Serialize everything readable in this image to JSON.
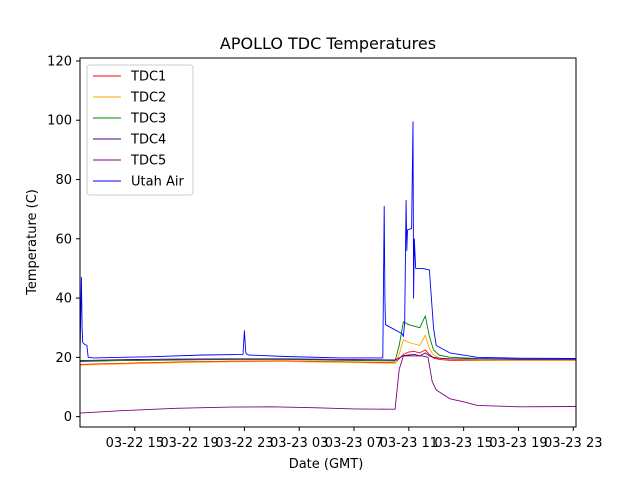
{
  "chart_data": {
    "type": "line",
    "title": "APOLLO TDC Temperatures",
    "xlabel": "Date (GMT)",
    "ylabel": "Temperature (C)",
    "xlim": [
      11.0,
      47.2
    ],
    "ylim": [
      -3.5,
      121
    ],
    "x_unit": "hours since 03-22 00 GMT",
    "xticks": [
      {
        "x": 15,
        "label": "03-22 15"
      },
      {
        "x": 19,
        "label": "03-22 19"
      },
      {
        "x": 23,
        "label": "03-22 23"
      },
      {
        "x": 27,
        "label": "03-23 03"
      },
      {
        "x": 31,
        "label": "03-23 07"
      },
      {
        "x": 35,
        "label": "03-23 11"
      },
      {
        "x": 39,
        "label": "03-23 15"
      },
      {
        "x": 43,
        "label": "03-23 19"
      },
      {
        "x": 47,
        "label": "03-23 23"
      }
    ],
    "yticks": [
      0,
      20,
      40,
      60,
      80,
      100,
      120
    ],
    "legend_position": "top-left",
    "series": [
      {
        "name": "TDC1",
        "color": "#ff0000",
        "x": [
          11.0,
          14,
          18,
          22,
          26,
          30,
          34.0,
          34.3,
          34.6,
          35.0,
          35.4,
          35.8,
          36.2,
          36.5,
          36.8,
          37.2,
          38,
          40,
          43,
          47.2
        ],
        "y": [
          17.6,
          18.0,
          18.4,
          18.7,
          18.8,
          18.5,
          18.2,
          19.5,
          21.0,
          21.8,
          22.0,
          21.5,
          22.5,
          21.0,
          19.8,
          19.3,
          19.0,
          18.9,
          18.9,
          18.9
        ]
      },
      {
        "name": "TDC2",
        "color": "#ffa500",
        "x": [
          11.0,
          14,
          18,
          22,
          26,
          30,
          34.0,
          34.3,
          34.6,
          35.0,
          35.4,
          35.8,
          36.2,
          36.5,
          36.8,
          37.2,
          38,
          40,
          43,
          47.2
        ],
        "y": [
          17.4,
          17.8,
          18.2,
          18.5,
          18.6,
          18.3,
          18.0,
          21.0,
          26.0,
          25.0,
          24.5,
          24.0,
          27.5,
          23.0,
          20.8,
          19.8,
          19.3,
          19.0,
          18.9,
          18.9
        ]
      },
      {
        "name": "TDC3",
        "color": "#008000",
        "x": [
          11.0,
          14,
          18,
          22,
          26,
          30,
          34.0,
          34.3,
          34.6,
          35.0,
          35.4,
          35.8,
          36.2,
          36.5,
          36.8,
          37.2,
          38,
          40,
          43,
          47.2
        ],
        "y": [
          18.6,
          18.9,
          19.1,
          19.3,
          19.3,
          19.0,
          18.8,
          24.0,
          32.0,
          31.0,
          30.5,
          30.0,
          34.0,
          27.0,
          22.5,
          20.8,
          20.0,
          19.6,
          19.4,
          19.4
        ]
      },
      {
        "name": "TDC4",
        "color": "#4b0082",
        "x": [
          11.0,
          14,
          18,
          22,
          26,
          30,
          34.0,
          34.3,
          34.6,
          35.0,
          35.4,
          35.8,
          36.2,
          36.5,
          36.8,
          37.2,
          38,
          40,
          43,
          47.2
        ],
        "y": [
          18.9,
          19.2,
          19.4,
          19.5,
          19.5,
          19.3,
          19.1,
          19.8,
          20.6,
          20.8,
          21.0,
          20.5,
          21.5,
          20.5,
          20.0,
          19.7,
          19.5,
          19.4,
          19.3,
          19.3
        ]
      },
      {
        "name": "TDC5",
        "color": "#800080",
        "x": [
          11.0,
          14,
          18,
          22,
          25,
          28,
          31,
          33.5,
          34.0,
          34.3,
          34.6,
          36.0,
          36.4,
          36.7,
          37.0,
          37.5,
          38.0,
          39.0,
          40.0,
          43,
          47.2
        ],
        "y": [
          1.2,
          2.0,
          2.8,
          3.2,
          3.3,
          3.0,
          2.6,
          2.5,
          2.5,
          16.0,
          20.5,
          20.5,
          20.0,
          12.0,
          9.0,
          7.5,
          6.0,
          5.0,
          3.8,
          3.3,
          3.4
        ]
      },
      {
        "name": "Utah Air",
        "color": "#0000ff",
        "x": [
          11.0,
          11.1,
          11.15,
          11.2,
          11.3,
          11.5,
          11.6,
          12.0,
          16,
          20,
          22.9,
          23.0,
          23.1,
          23.2,
          23.3,
          26,
          30,
          33.1,
          33.2,
          33.25,
          33.3,
          33.5,
          34.5,
          34.6,
          34.7,
          34.8,
          34.85,
          34.9,
          35.2,
          35.3,
          35.35,
          35.4,
          35.5,
          36.0,
          36.5,
          36.8,
          37.0,
          38,
          40,
          43,
          47.2
        ],
        "y": [
          20.0,
          47.0,
          30.0,
          25.0,
          24.5,
          24.0,
          20.0,
          19.8,
          20.2,
          20.8,
          21.0,
          29.0,
          21.5,
          21.0,
          20.8,
          20.3,
          19.8,
          19.8,
          71.0,
          40.0,
          31.0,
          30.5,
          28.0,
          27.0,
          32.0,
          73.0,
          56.0,
          63.0,
          63.5,
          99.5,
          40.0,
          60.0,
          50.0,
          50.0,
          49.5,
          30.0,
          24.0,
          21.5,
          20.0,
          19.7,
          19.6
        ]
      }
    ]
  }
}
